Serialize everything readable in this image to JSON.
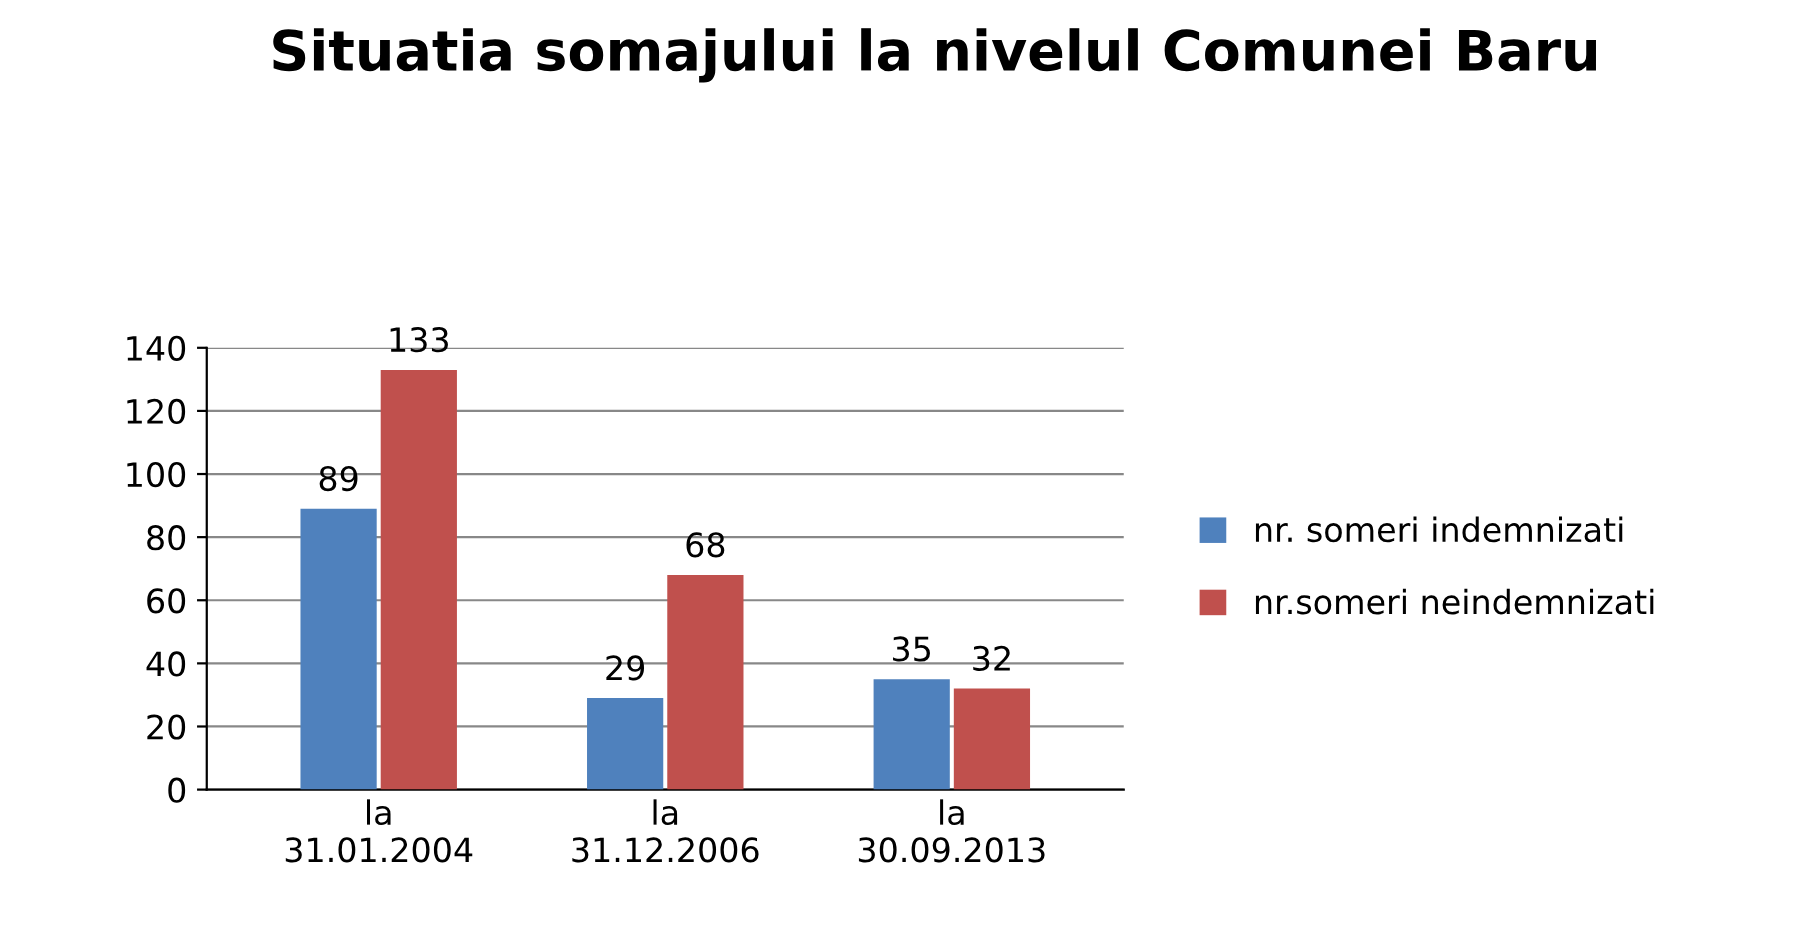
{
  "chart_data": {
    "type": "bar",
    "title": "Situatia somajului la nivelul Comunei Baru",
    "categories": [
      "la\n31.01.2004",
      "la\n31.12.2006",
      "la\n30.09.2013"
    ],
    "series": [
      {
        "name": "nr. someri indemnizati",
        "color": "#4f81bd",
        "values": [
          89,
          29,
          35
        ]
      },
      {
        "name": "nr.someri neindemnizati",
        "color": "#c0504d",
        "values": [
          133,
          68,
          32
        ]
      }
    ],
    "ylim": [
      0,
      140
    ],
    "yticks": [
      0,
      20,
      40,
      60,
      80,
      100,
      120,
      140
    ],
    "grid": "y",
    "legend": "right",
    "data_labels": true
  }
}
